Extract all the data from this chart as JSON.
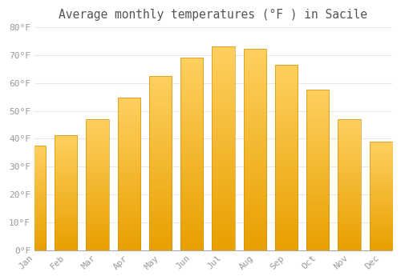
{
  "title": "Average monthly temperatures (°F ) in Sacile",
  "months": [
    "Jan",
    "Feb",
    "Mar",
    "Apr",
    "May",
    "Jun",
    "Jul",
    "Aug",
    "Sep",
    "Oct",
    "Nov",
    "Dec"
  ],
  "values": [
    37.4,
    41.2,
    47.0,
    54.7,
    62.6,
    69.1,
    73.2,
    72.3,
    66.6,
    57.7,
    47.1,
    39.0
  ],
  "bar_color_bottom": "#E8A000",
  "bar_color_top": "#FFD060",
  "ylim": [
    0,
    80
  ],
  "yticks": [
    0,
    10,
    20,
    30,
    40,
    50,
    60,
    70,
    80
  ],
  "ytick_labels": [
    "0°F",
    "10°F",
    "20°F",
    "30°F",
    "40°F",
    "50°F",
    "60°F",
    "70°F",
    "80°F"
  ],
  "background_color": "#ffffff",
  "grid_color": "#e8e8e8",
  "title_fontsize": 10.5,
  "tick_fontsize": 8,
  "tick_color": "#999999",
  "title_color": "#555555"
}
